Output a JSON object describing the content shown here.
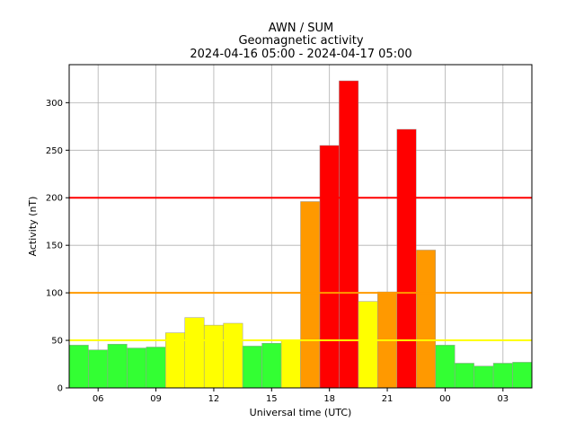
{
  "chart_data": {
    "type": "bar",
    "title": "AWN / SUM",
    "subtitle": "Geomagnetic activity",
    "period": "2024-04-16 05:00 - 2024-04-17 05:00",
    "xlabel": "Universal time (UTC)",
    "ylabel": "Activity (nT)",
    "ylim": [
      0,
      340
    ],
    "x_tick_labels": [
      "06",
      "09",
      "12",
      "15",
      "18",
      "21",
      "00",
      "03"
    ],
    "y_ticks": [
      0,
      50,
      100,
      150,
      200,
      250,
      300
    ],
    "grid": true,
    "bar_hours_start": 5,
    "values": [
      45,
      40,
      46,
      42,
      43,
      58,
      74,
      66,
      68,
      44,
      47,
      50,
      196,
      255,
      323,
      91,
      101,
      272,
      145,
      45,
      26,
      23,
      26,
      27
    ],
    "thresholds": [
      {
        "value": 50,
        "color": "#ffff00"
      },
      {
        "value": 100,
        "color": "#ff9900"
      },
      {
        "value": 200,
        "color": "#ff0000"
      }
    ],
    "level_colors": {
      "quiet": "#33ff33",
      "moderate": "#ffff00",
      "active": "#ff9900",
      "storm": "#ff0000"
    }
  }
}
